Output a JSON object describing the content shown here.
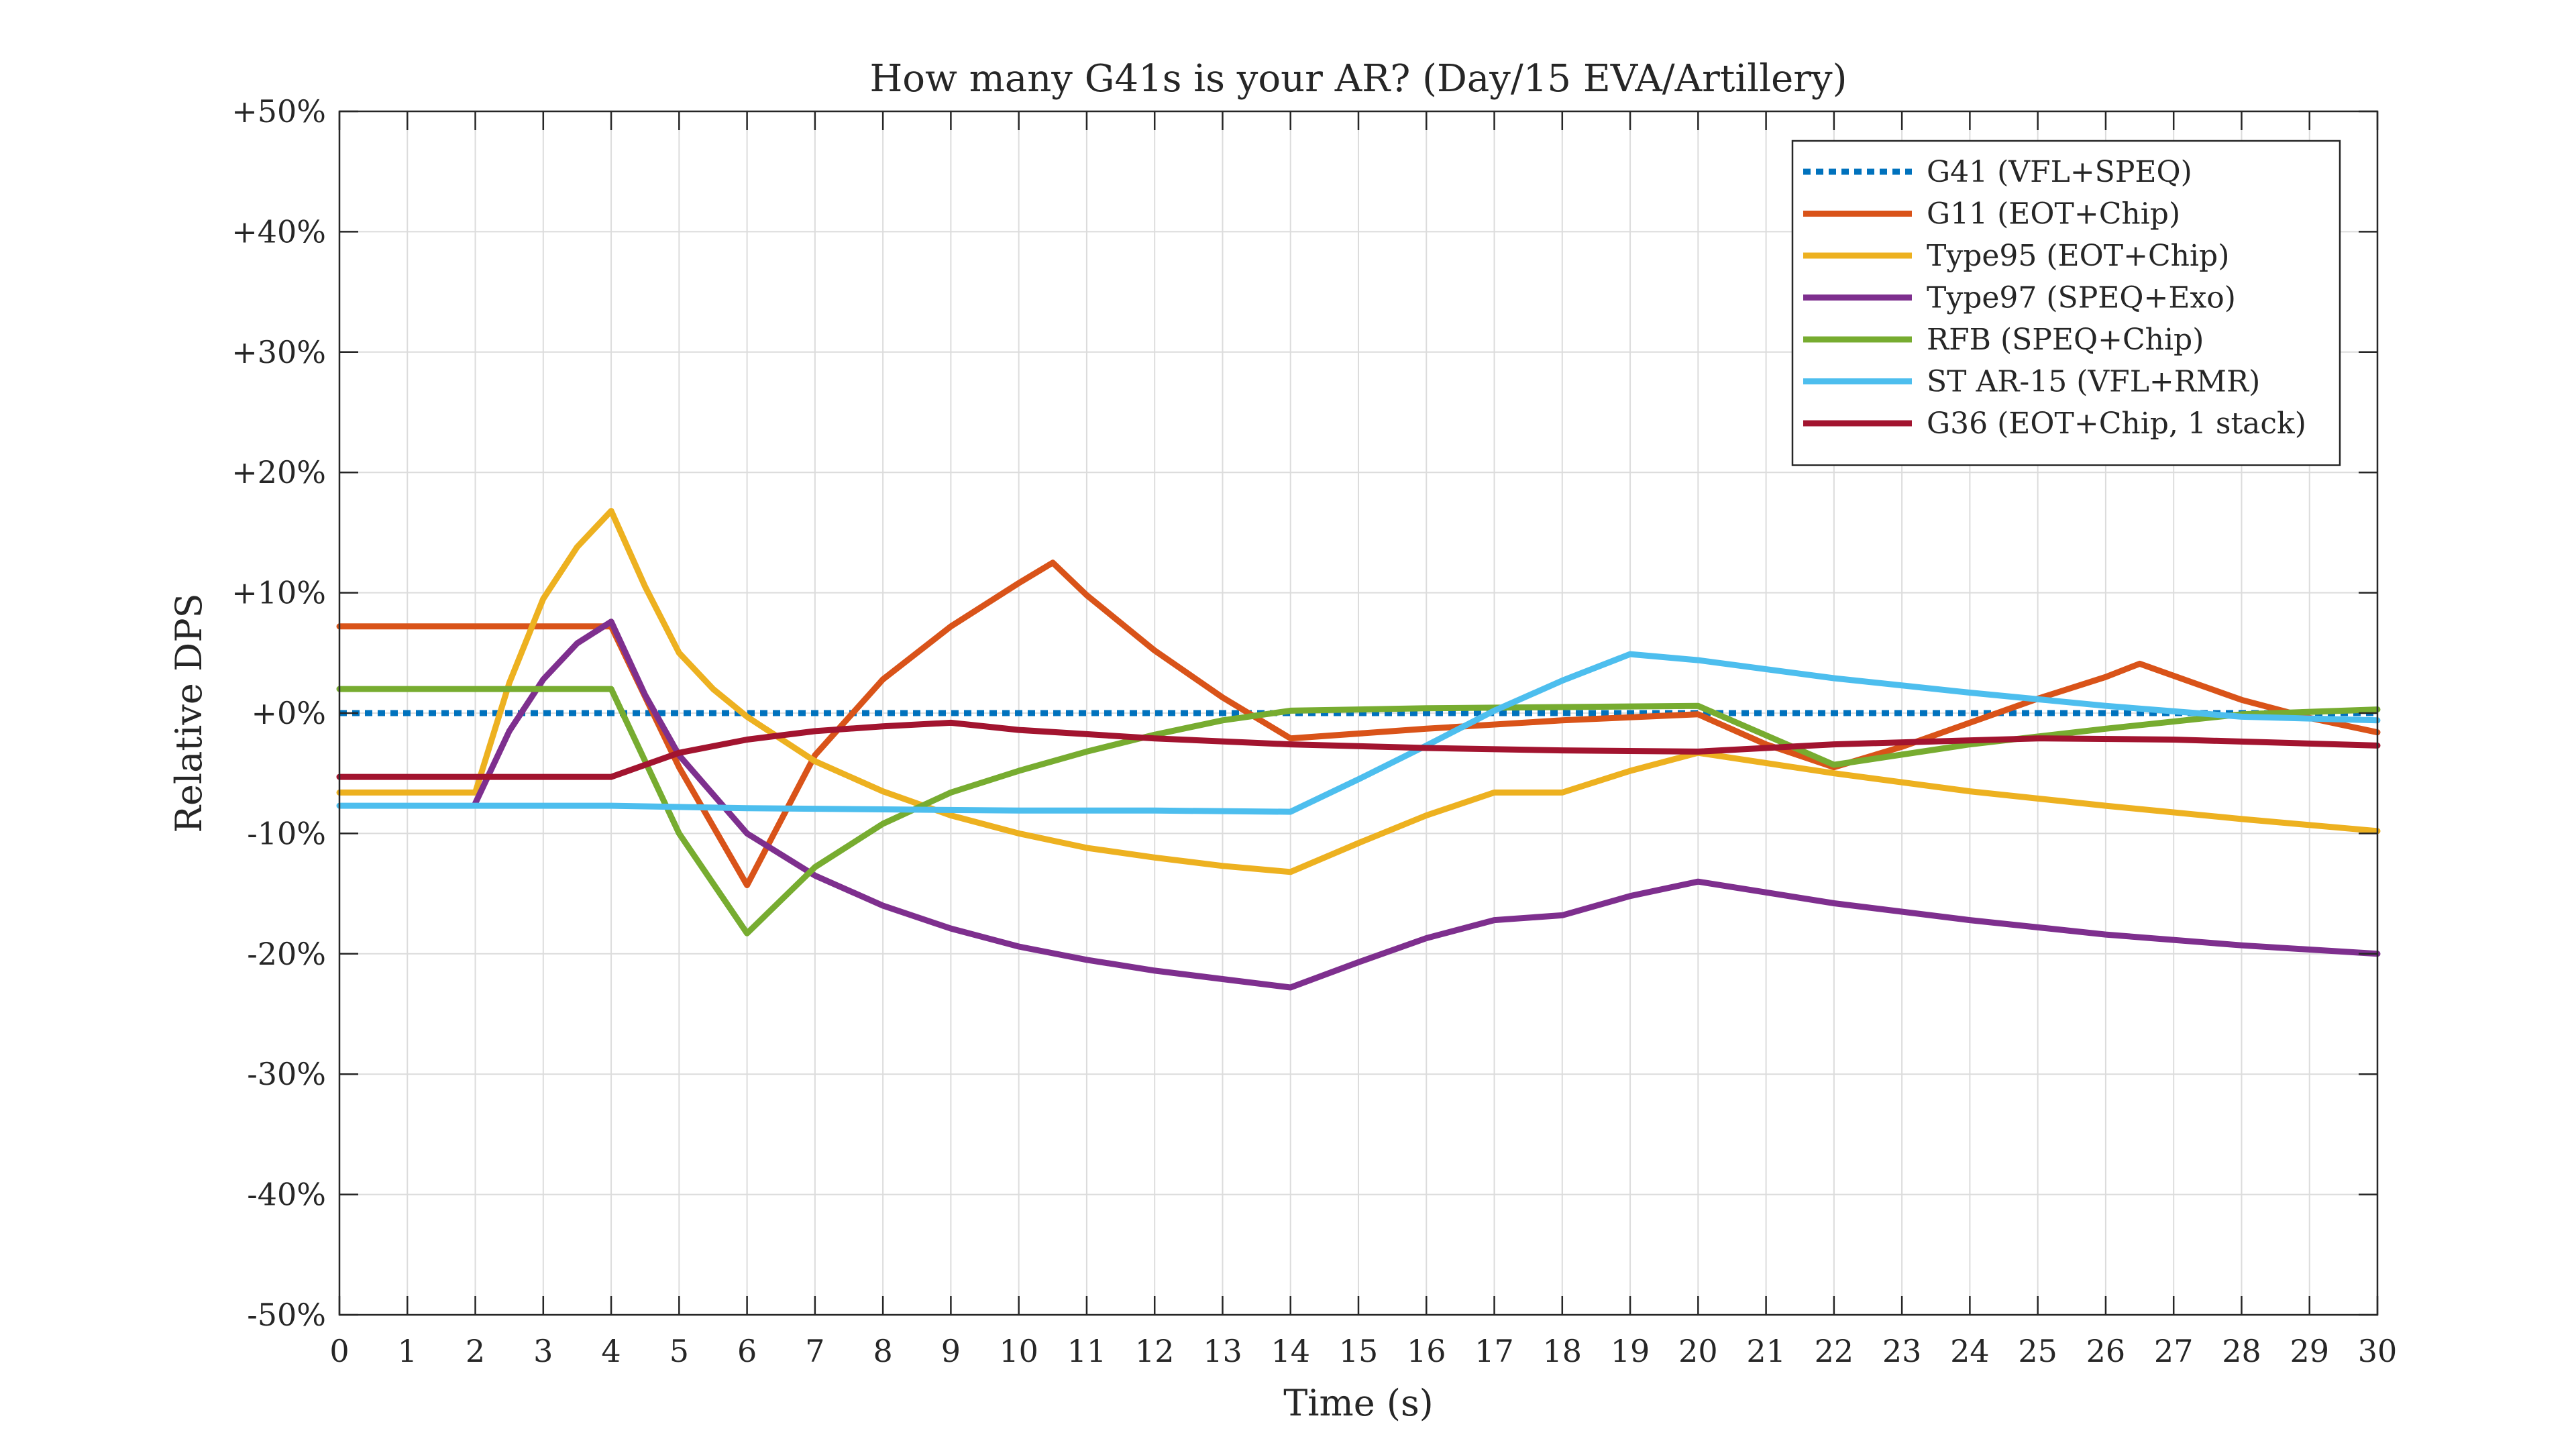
{
  "chart_data": {
    "type": "line",
    "title": "How many G41s is your AR? (Day/15 EVA/Artillery)",
    "xlabel": "Time (s)",
    "ylabel": "Relative DPS",
    "xlim": [
      0,
      30
    ],
    "ylim": [
      -50,
      50
    ],
    "x_ticks": [
      0,
      1,
      2,
      3,
      4,
      5,
      6,
      7,
      8,
      9,
      10,
      11,
      12,
      13,
      14,
      15,
      16,
      17,
      18,
      19,
      20,
      21,
      22,
      23,
      24,
      25,
      26,
      27,
      28,
      29,
      30
    ],
    "x_tick_labels": [
      "0",
      "1",
      "2",
      "3",
      "4",
      "5",
      "6",
      "7",
      "8",
      "9",
      "10",
      "11",
      "12",
      "13",
      "14",
      "15",
      "16",
      "17",
      "18",
      "19",
      "20",
      "21",
      "22",
      "23",
      "24",
      "25",
      "26",
      "27",
      "28",
      "29",
      "30"
    ],
    "y_ticks": [
      50,
      40,
      30,
      20,
      10,
      0,
      -10,
      -20,
      -30,
      -40,
      -50
    ],
    "y_tick_labels": [
      "+50%",
      "+40%",
      "+30%",
      "+20%",
      "+10%",
      "+0%",
      "-10%",
      "-20%",
      "-30%",
      "-40%",
      "-50%"
    ],
    "grid": true,
    "legend_position": "top-right",
    "series": [
      {
        "name": "G41 (VFL+SPEQ)",
        "color": "#0072BD",
        "style": "dotted",
        "x": [
          0,
          30
        ],
        "y": [
          0,
          0
        ]
      },
      {
        "name": "G11 (EOT+Chip)",
        "color": "#D95319",
        "style": "solid",
        "x": [
          0,
          4,
          5,
          6,
          7,
          8,
          9,
          10,
          10.5,
          11,
          12,
          13,
          14,
          16,
          18,
          20,
          21,
          22,
          23,
          24,
          25,
          26,
          26.5,
          27,
          28,
          29,
          30
        ],
        "y": [
          7.2,
          7.2,
          -4.5,
          -14.3,
          -3.5,
          2.8,
          7.2,
          10.8,
          12.5,
          9.8,
          5.2,
          1.3,
          -2.1,
          -1.3,
          -0.6,
          -0.1,
          -2.6,
          -4.5,
          -2.8,
          -0.8,
          1.2,
          3.0,
          4.1,
          3.1,
          1.1,
          -0.4,
          -1.6
        ]
      },
      {
        "name": "Type95 (EOT+Chip)",
        "color": "#EDB120",
        "style": "solid",
        "x": [
          0,
          2,
          2.5,
          3,
          3.5,
          4,
          4.5,
          5,
          5.5,
          6,
          7,
          8,
          9,
          10,
          11,
          12,
          13,
          14,
          15,
          16,
          17,
          18,
          19,
          20,
          22,
          24,
          26,
          28,
          30
        ],
        "y": [
          -6.6,
          -6.6,
          2.5,
          9.5,
          13.8,
          16.8,
          10.5,
          5.0,
          2.0,
          -0.3,
          -4.0,
          -6.5,
          -8.5,
          -10.0,
          -11.2,
          -12.0,
          -12.7,
          -13.2,
          -10.8,
          -8.5,
          -6.6,
          -6.6,
          -4.8,
          -3.3,
          -5.0,
          -6.5,
          -7.7,
          -8.8,
          -9.8
        ]
      },
      {
        "name": "Type97 (SPEQ+Exo)",
        "color": "#7E2F8E",
        "style": "solid",
        "x": [
          2,
          2.5,
          3,
          3.5,
          4,
          4.5,
          5,
          6,
          7,
          8,
          9,
          10,
          11,
          12,
          13,
          14,
          15,
          16,
          17,
          18,
          19,
          20,
          22,
          24,
          26,
          28,
          30
        ],
        "y": [
          -7.5,
          -1.5,
          2.8,
          5.8,
          7.6,
          1.5,
          -3.5,
          -10.0,
          -13.5,
          -16.0,
          -17.9,
          -19.4,
          -20.5,
          -21.4,
          -22.1,
          -22.8,
          -20.7,
          -18.7,
          -17.2,
          -16.8,
          -15.2,
          -14.0,
          -15.8,
          -17.2,
          -18.4,
          -19.3,
          -20.0
        ]
      },
      {
        "name": "RFB (SPEQ+Chip)",
        "color": "#77AC30",
        "style": "solid",
        "x": [
          0,
          4,
          5,
          6,
          7,
          8,
          9,
          10,
          11,
          12,
          13,
          14,
          16,
          18,
          20,
          22,
          24,
          26,
          28,
          30
        ],
        "y": [
          2.0,
          2.0,
          -10.0,
          -18.3,
          -12.8,
          -9.2,
          -6.6,
          -4.8,
          -3.2,
          -1.8,
          -0.6,
          0.2,
          0.4,
          0.5,
          0.6,
          -4.3,
          -2.6,
          -1.3,
          -0.1,
          0.3
        ]
      },
      {
        "name": "ST AR-15 (VFL+RMR)",
        "color": "#4DBEEE",
        "style": "solid",
        "x": [
          0,
          4,
          6,
          8,
          10,
          12,
          14,
          15,
          16,
          17,
          18,
          19,
          20,
          22,
          24,
          26,
          28,
          30
        ],
        "y": [
          -7.7,
          -7.7,
          -7.9,
          -8.0,
          -8.1,
          -8.1,
          -8.2,
          -5.5,
          -2.7,
          0.2,
          2.7,
          4.9,
          4.4,
          2.9,
          1.7,
          0.6,
          -0.3,
          -0.6
        ]
      },
      {
        "name": "G36 (EOT+Chip, 1 stack)",
        "color": "#A2142F",
        "style": "solid",
        "x": [
          0,
          4,
          5,
          6,
          7,
          8,
          9,
          10,
          12,
          14,
          16,
          18,
          20,
          22,
          25,
          27,
          30
        ],
        "y": [
          -5.3,
          -5.3,
          -3.3,
          -2.2,
          -1.5,
          -1.1,
          -0.8,
          -1.4,
          -2.1,
          -2.6,
          -2.9,
          -3.1,
          -3.2,
          -2.6,
          -2.1,
          -2.2,
          -2.7
        ]
      }
    ]
  }
}
